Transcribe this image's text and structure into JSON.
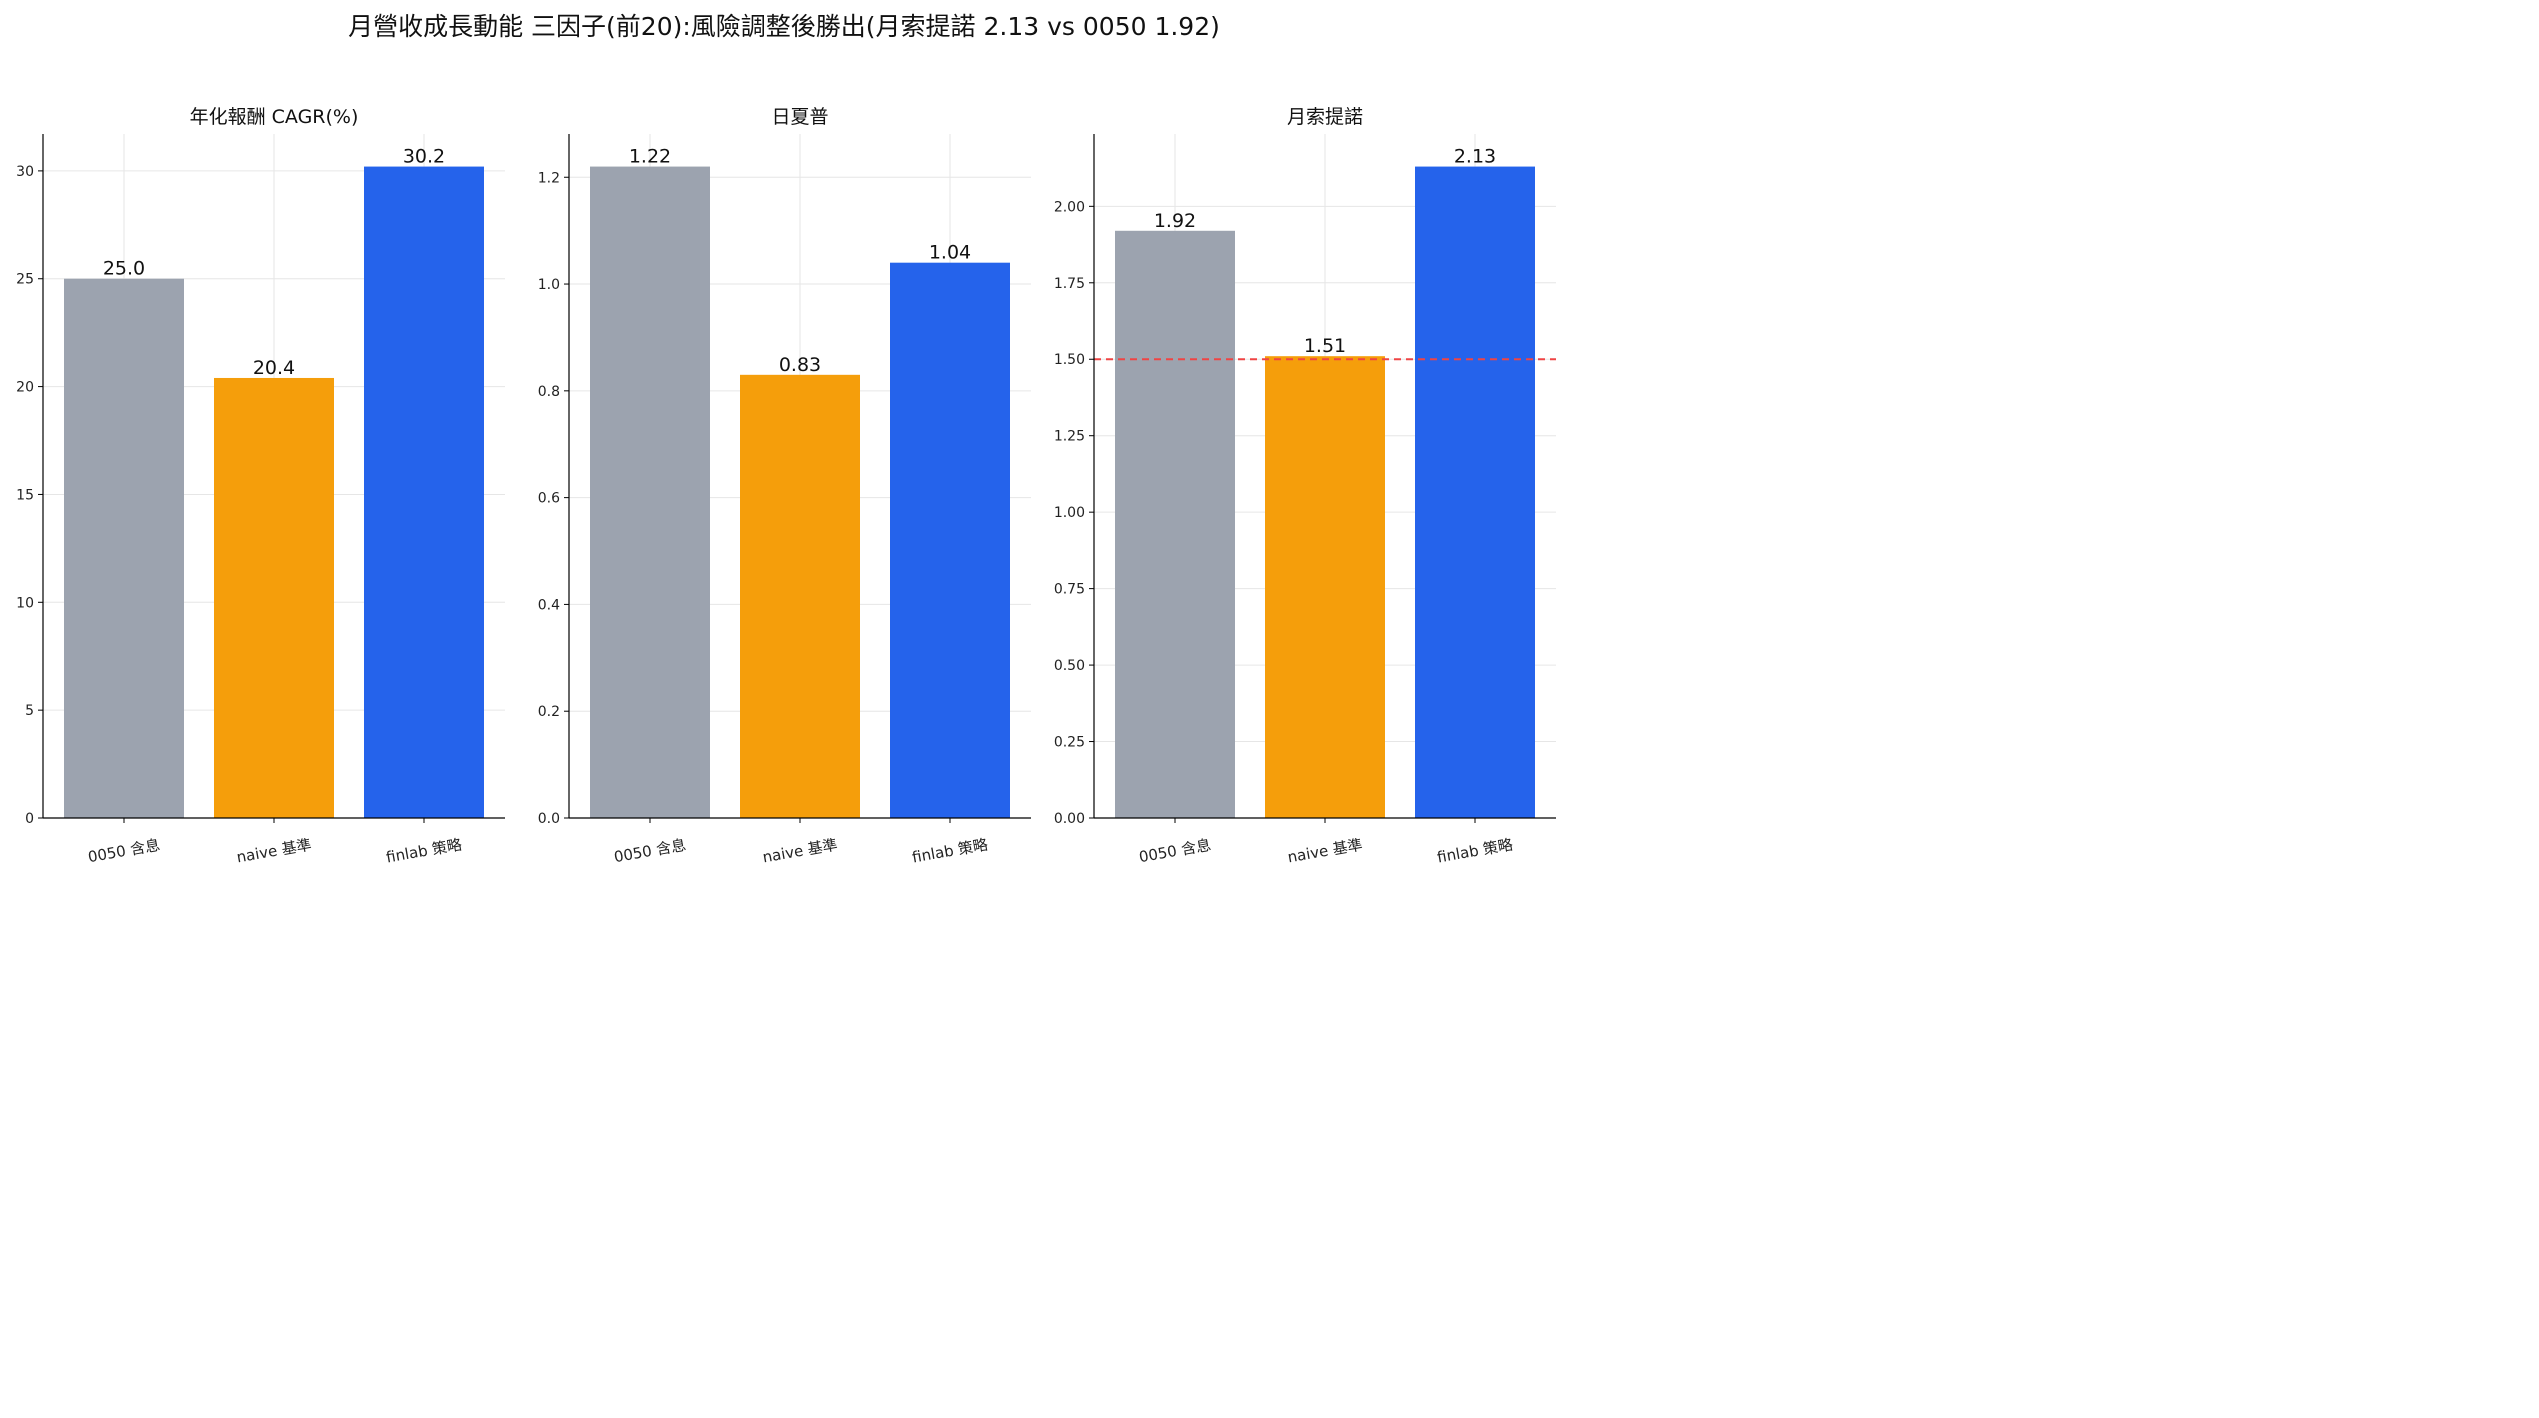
{
  "chart_data": {
    "type": "bar",
    "title": "月營收成長動能 三因子(前20):風險調整後勝出(月索提諾 2.13 vs 0050 1.92)",
    "categories": [
      "0050 含息",
      "naive 基準",
      "finlab 策略"
    ],
    "colors": [
      "#9ca3af",
      "#f59e0b",
      "#2563eb"
    ],
    "grid": true,
    "panels": [
      {
        "title": "年化報酬 CAGR(%)",
        "values": [
          25.0,
          20.4,
          30.2
        ],
        "value_labels": [
          "25.0",
          "20.4",
          "30.2"
        ],
        "ylim": [
          0,
          31.71
        ],
        "yticks": [
          0,
          5,
          10,
          15,
          20,
          25,
          30
        ],
        "ytick_labels": [
          "0",
          "5",
          "10",
          "15",
          "20",
          "25",
          "30"
        ]
      },
      {
        "title": "日夏普",
        "values": [
          1.22,
          0.83,
          1.04
        ],
        "value_labels": [
          "1.22",
          "0.83",
          "1.04"
        ],
        "ylim": [
          0,
          1.281
        ],
        "yticks": [
          0,
          0.2,
          0.4,
          0.6,
          0.8,
          1.0,
          1.2
        ],
        "ytick_labels": [
          "0.0",
          "0.2",
          "0.4",
          "0.6",
          "0.8",
          "1.0",
          "1.2"
        ]
      },
      {
        "title": "月索提諾",
        "values": [
          1.92,
          1.51,
          2.13
        ],
        "value_labels": [
          "1.92",
          "1.51",
          "2.13"
        ],
        "ylim": [
          0,
          2.2365
        ],
        "yticks": [
          0,
          0.25,
          0.5,
          0.75,
          1.0,
          1.25,
          1.5,
          1.75,
          2.0
        ],
        "ytick_labels": [
          "0.00",
          "0.25",
          "0.50",
          "0.75",
          "1.00",
          "1.25",
          "1.50",
          "1.75",
          "2.00"
        ],
        "reference_line": {
          "y": 1.5,
          "color": "#ef4444",
          "style": "dashed"
        }
      }
    ]
  }
}
